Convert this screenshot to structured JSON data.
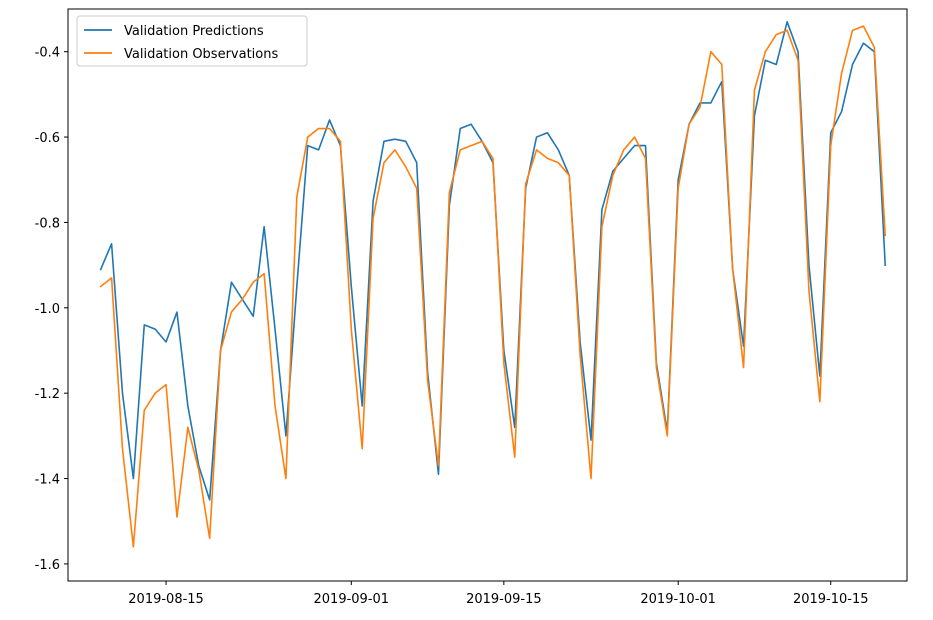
{
  "chart_data": {
    "type": "line",
    "title": "",
    "xlabel": "",
    "ylabel": "",
    "xlim": [
      "2019-08-06",
      "2019-10-22"
    ],
    "ylim": [
      -1.64,
      -0.3
    ],
    "grid": false,
    "legend_position": "upper-left",
    "x_ticks": [
      "2019-08-15",
      "2019-09-01",
      "2019-09-15",
      "2019-10-01",
      "2019-10-15"
    ],
    "y_ticks": [
      -1.6,
      -1.4,
      -1.2,
      -1.0,
      -0.8,
      -0.6,
      -0.4
    ],
    "x_start": "2019-08-09",
    "series": [
      {
        "name": "Validation Predictions",
        "color": "#1f77b4",
        "values": [
          -0.91,
          -0.85,
          -1.2,
          -1.4,
          -1.04,
          -1.05,
          -1.08,
          -1.01,
          -1.23,
          -1.37,
          -1.45,
          -1.1,
          -0.94,
          -0.98,
          -1.02,
          -0.81,
          -1.05,
          -1.3,
          -0.95,
          -0.62,
          -0.63,
          -0.56,
          -0.62,
          -0.95,
          -1.23,
          -0.75,
          -0.61,
          -0.605,
          -0.61,
          -0.66,
          -1.15,
          -1.39,
          -0.76,
          -0.58,
          -0.57,
          -0.61,
          -0.66,
          -1.1,
          -1.28,
          -0.72,
          -0.6,
          -0.59,
          -0.63,
          -0.69,
          -1.08,
          -1.31,
          -0.77,
          -0.68,
          -0.65,
          -0.62,
          -0.62,
          -1.13,
          -1.29,
          -0.7,
          -0.57,
          -0.52,
          -0.52,
          -0.47,
          -0.91,
          -1.09,
          -0.55,
          -0.42,
          -0.43,
          -0.33,
          -0.4,
          -0.9,
          -1.16,
          -0.59,
          -0.54,
          -0.43,
          -0.38,
          -0.4,
          -0.9
        ]
      },
      {
        "name": "Validation Observations",
        "color": "#ff7f0e",
        "values": [
          -0.95,
          -0.93,
          -1.33,
          -1.56,
          -1.24,
          -1.2,
          -1.18,
          -1.49,
          -1.28,
          -1.38,
          -1.54,
          -1.1,
          -1.01,
          -0.98,
          -0.94,
          -0.92,
          -1.23,
          -1.4,
          -0.74,
          -0.6,
          -0.58,
          -0.58,
          -0.61,
          -1.05,
          -1.33,
          -0.79,
          -0.66,
          -0.63,
          -0.67,
          -0.72,
          -1.17,
          -1.37,
          -0.73,
          -0.63,
          -0.62,
          -0.61,
          -0.65,
          -1.13,
          -1.35,
          -0.71,
          -0.63,
          -0.65,
          -0.66,
          -0.69,
          -1.11,
          -1.4,
          -0.81,
          -0.69,
          -0.63,
          -0.6,
          -0.65,
          -1.14,
          -1.3,
          -0.72,
          -0.57,
          -0.53,
          -0.4,
          -0.43,
          -0.91,
          -1.14,
          -0.49,
          -0.4,
          -0.36,
          -0.35,
          -0.42,
          -0.96,
          -1.22,
          -0.62,
          -0.45,
          -0.35,
          -0.34,
          -0.39,
          -0.83
        ]
      }
    ]
  }
}
